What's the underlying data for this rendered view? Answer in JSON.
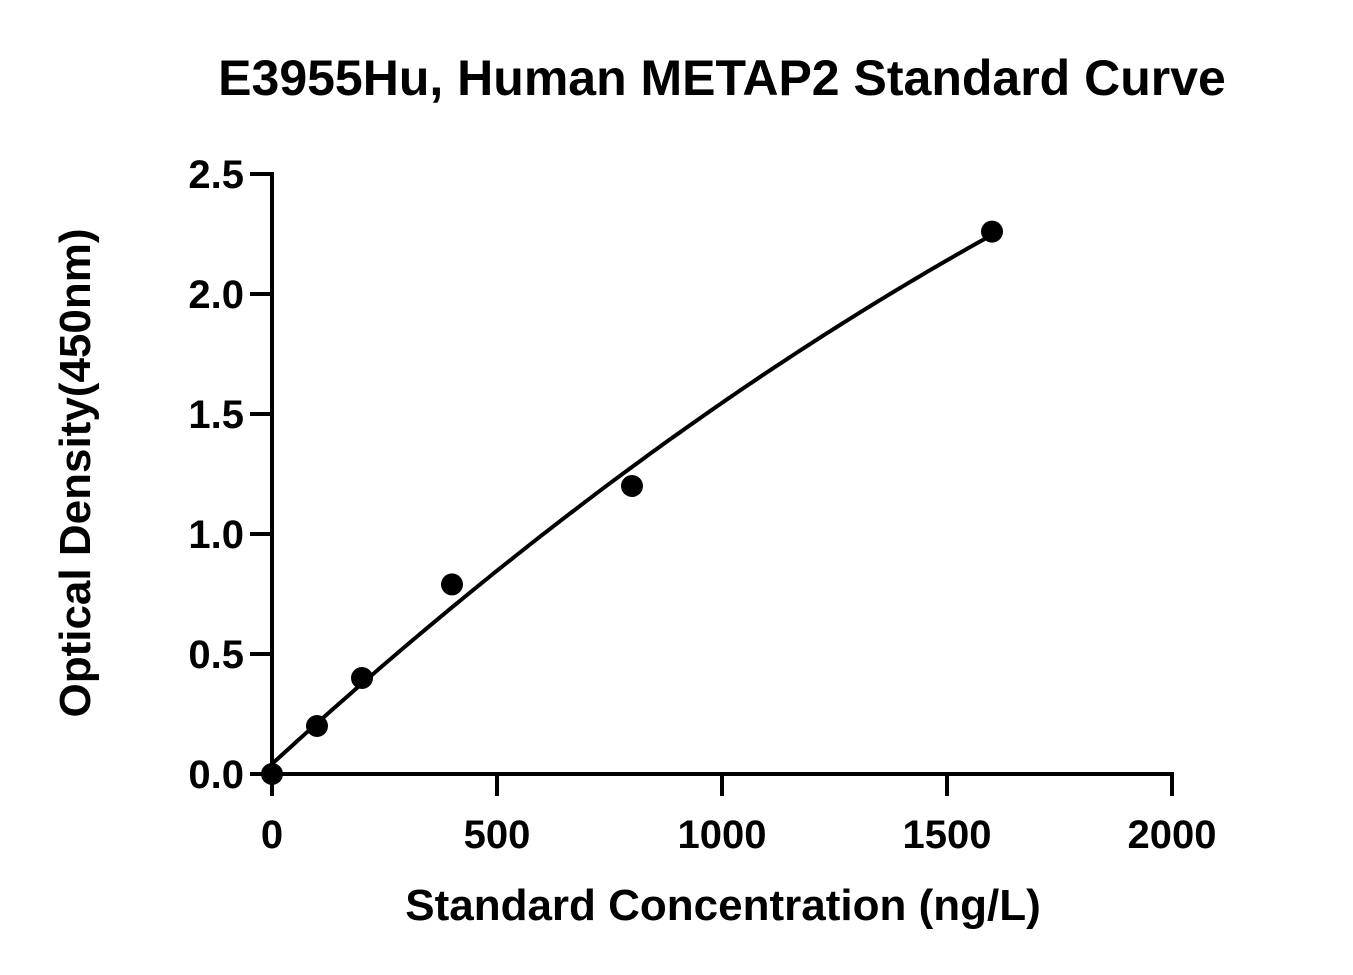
{
  "chart_data": {
    "type": "scatter",
    "title": "E3955Hu, Human METAP2 Standard Curve",
    "xlabel": "Standard Concentration (ng/L)",
    "ylabel": "Optical Density(450nm)",
    "xlim": [
      0,
      2000
    ],
    "ylim": [
      0,
      2.5
    ],
    "x_ticks": [
      0,
      500,
      1000,
      1500,
      2000
    ],
    "x_tick_labels": [
      "0",
      "500",
      "1000",
      "1500",
      "2000"
    ],
    "y_ticks": [
      0,
      0.5,
      1.0,
      1.5,
      2.0,
      2.5
    ],
    "y_tick_labels": [
      "0.0",
      "0.5",
      "1.0",
      "1.5",
      "2.0",
      "2.5"
    ],
    "grid": false,
    "series": [
      {
        "points": [
          {
            "x": 0,
            "y": 0.0
          },
          {
            "x": 100,
            "y": 0.2
          },
          {
            "x": 200,
            "y": 0.4
          },
          {
            "x": 400,
            "y": 0.79
          },
          {
            "x": 800,
            "y": 1.2
          },
          {
            "x": 1600,
            "y": 2.26
          }
        ],
        "fit_curve": true,
        "color": "#000000"
      }
    ]
  }
}
